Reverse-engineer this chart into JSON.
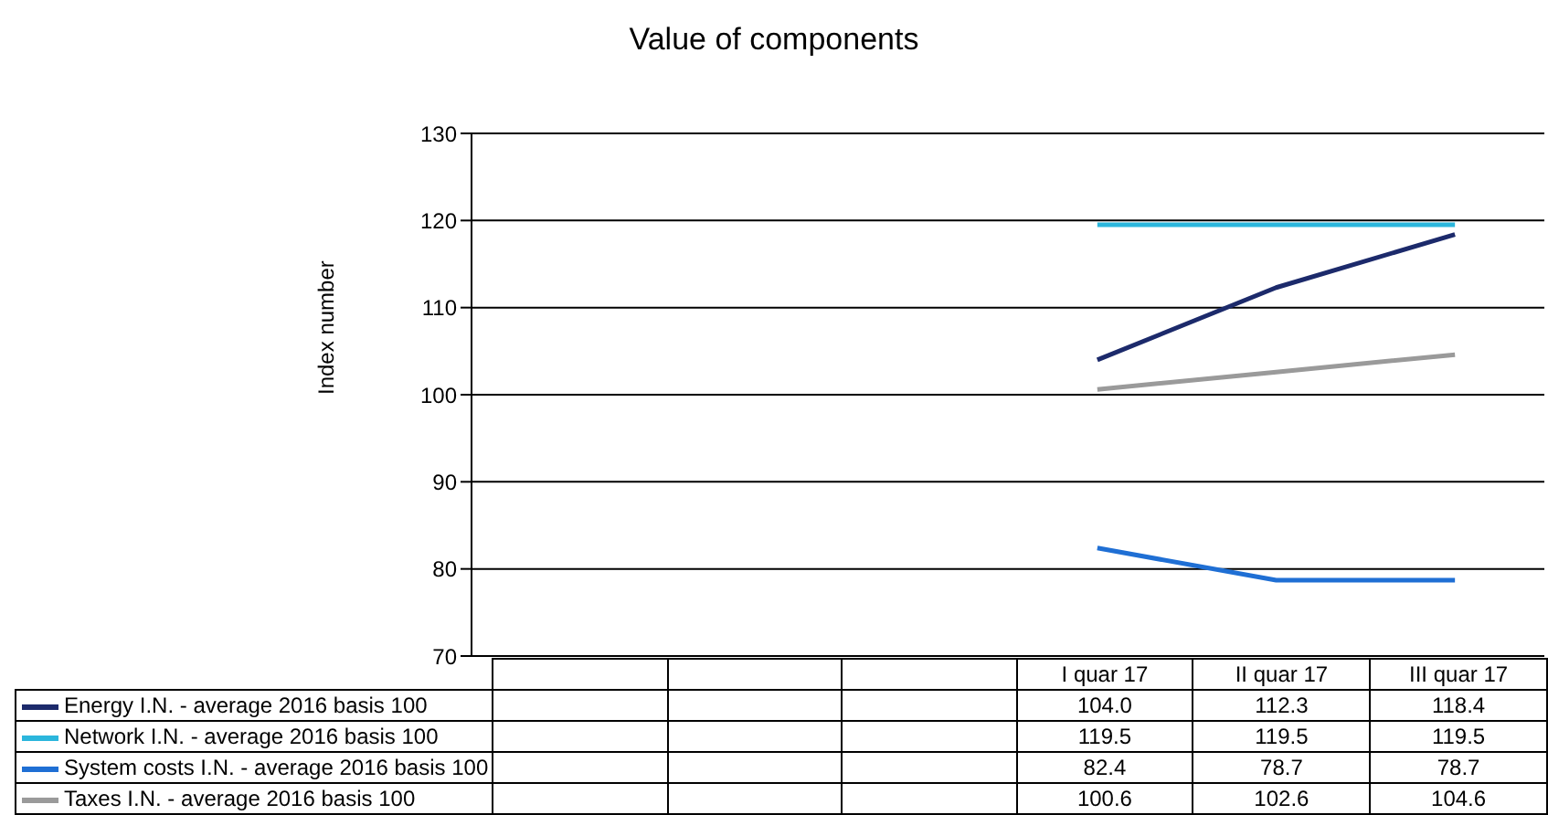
{
  "chart_data": {
    "type": "line",
    "title": "Value of components",
    "ylabel": "Index number",
    "categories": [
      null,
      null,
      null,
      "I quar 17",
      "II quar 17",
      "III quar 17"
    ],
    "series": [
      {
        "name": "Energy I.N. - average 2016 basis 100",
        "color": "#1c2a6b",
        "values": [
          null,
          null,
          null,
          104.0,
          112.3,
          118.4
        ],
        "value_labels": [
          null,
          null,
          null,
          "104.0",
          "112.3",
          "118.4"
        ]
      },
      {
        "name": "Network I.N. - average 2016 basis 100",
        "color": "#2bb6dc",
        "values": [
          null,
          null,
          null,
          119.5,
          119.5,
          119.5
        ],
        "value_labels": [
          null,
          null,
          null,
          "119.5",
          "119.5",
          "119.5"
        ]
      },
      {
        "name": "System costs I.N. - average 2016 basis 100",
        "color": "#1f6fd4",
        "values": [
          null,
          null,
          null,
          82.4,
          78.7,
          78.7
        ],
        "value_labels": [
          null,
          null,
          null,
          "82.4",
          "78.7",
          "78.7"
        ]
      },
      {
        "name": "Taxes I.N. - average 2016 basis 100",
        "color": "#9a9a9a",
        "values": [
          null,
          null,
          null,
          100.6,
          102.6,
          104.6
        ],
        "value_labels": [
          null,
          null,
          null,
          "100.6",
          "102.6",
          "104.6"
        ]
      }
    ],
    "ylim": [
      70,
      130
    ],
    "yticks": [
      70,
      80,
      90,
      100,
      110,
      120,
      130
    ],
    "grid": "y",
    "legend": "bottom",
    "marker": "none",
    "line_style": "solid"
  }
}
